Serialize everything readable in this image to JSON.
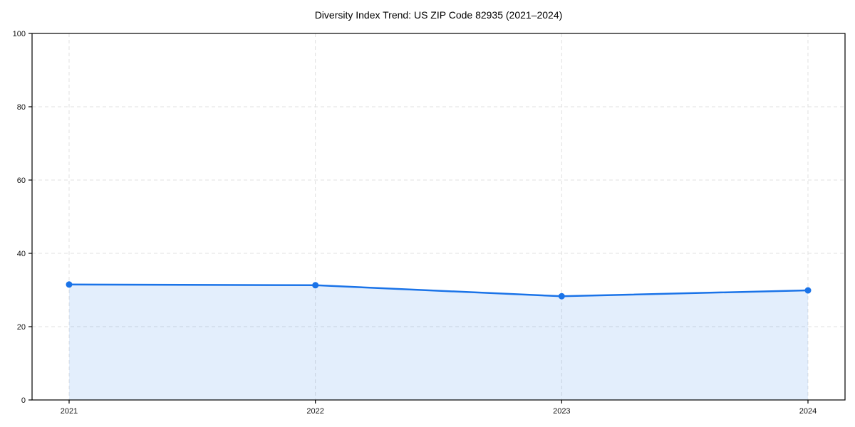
{
  "title": "Diversity Index Trend: US ZIP Code 82935 (2021–2024)",
  "chart_data": {
    "type": "area",
    "title": "Diversity Index Trend: US ZIP Code 82935 (2021–2024)",
    "categories": [
      "2021",
      "2022",
      "2023",
      "2024"
    ],
    "series": [
      {
        "name": "Diversity Index",
        "values": [
          31.5,
          31.3,
          28.3,
          29.9
        ]
      }
    ],
    "xlabel": "",
    "ylabel": "",
    "ylim": [
      0,
      100
    ],
    "yticks": [
      0,
      20,
      40,
      60,
      80,
      100
    ],
    "grid": true,
    "grid_style": "dashed",
    "legend_position": "none",
    "colors": {
      "line": "#1a73e8",
      "marker": "#1a73e8",
      "area_fill": "rgba(26,115,232,0.12)",
      "grid": "#e0e0e0",
      "spine": "#000000",
      "tick_label": "#111111",
      "background": "#ffffff"
    }
  }
}
